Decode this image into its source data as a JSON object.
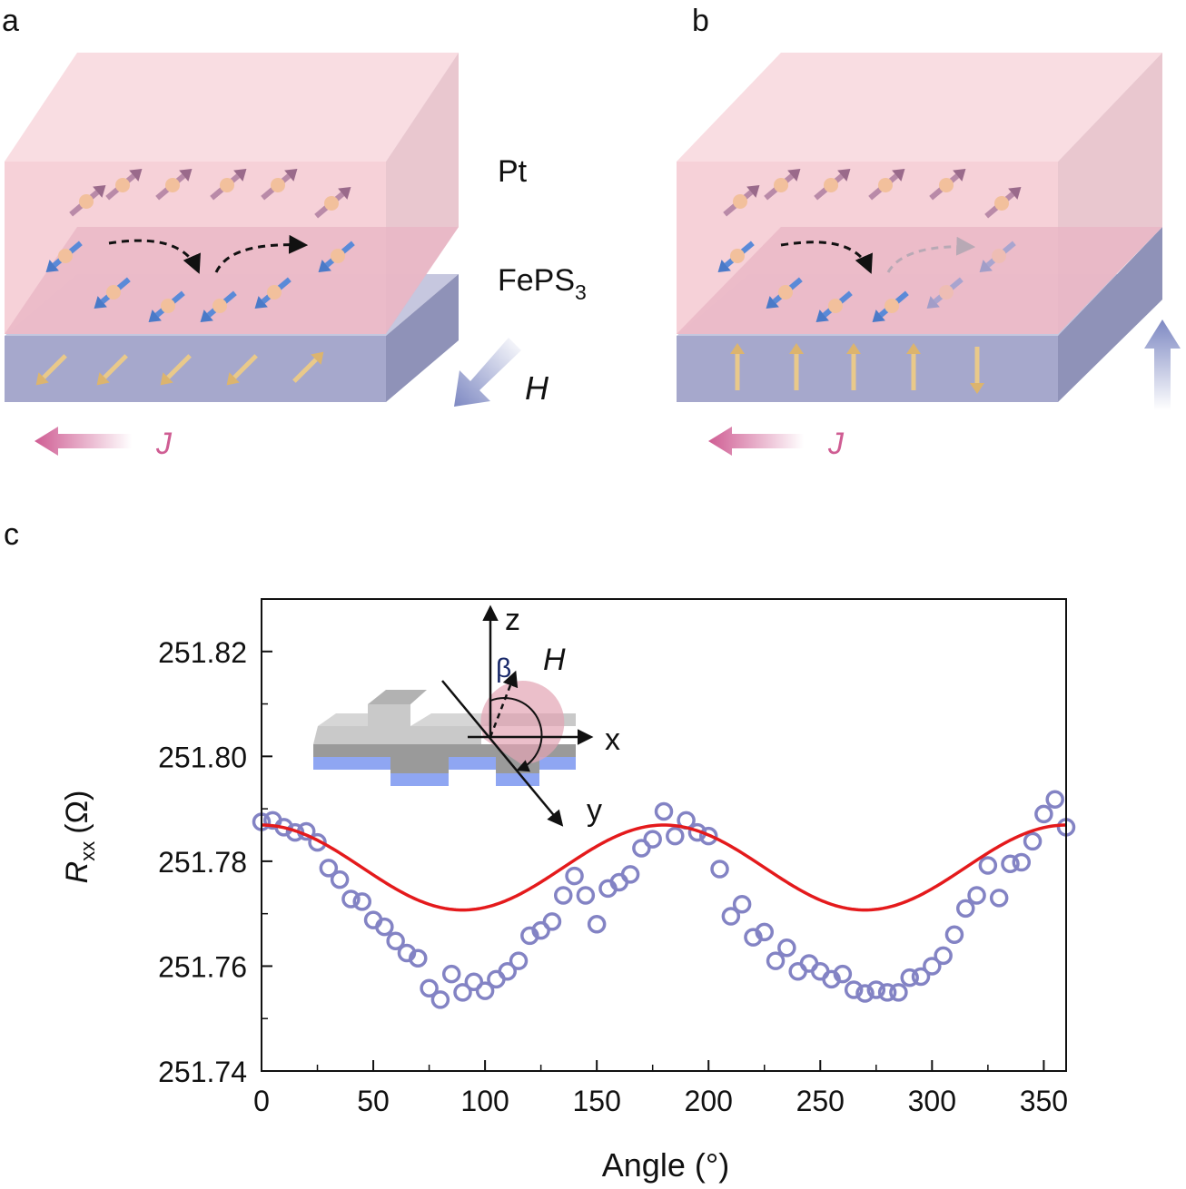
{
  "panels": {
    "a": {
      "letter": "a",
      "layer_top": "Pt",
      "layer_mid_base": "FePS",
      "layer_mid_sub": "3",
      "field_label": "H",
      "current_label": "J"
    },
    "b": {
      "letter": "b",
      "current_label": "J"
    },
    "c": {
      "letter": "c"
    }
  },
  "inset": {
    "axis_z": "z",
    "axis_x": "x",
    "axis_y": "y",
    "angle_label": "β",
    "field_label": "H"
  },
  "colors": {
    "pt_layer": "#f6cfd6",
    "magnet_layer": "#a6a8cc",
    "overlap": "#e8b4c4",
    "spin_pink": "#b98aa8",
    "spin_blue": "#5a8ad8",
    "spin_ball": "#f2c09c",
    "moment_gold": "#e9c98a",
    "current_arrow": "#cf5d93",
    "field_arrow": "#7d88c2",
    "fit_line": "#e41a1c",
    "data_marker": "#8383c4"
  },
  "chart_data": {
    "type": "scatter",
    "xlabel": "Angle (°)",
    "ylabel_main": "R",
    "ylabel_sub": "xx",
    "ylabel_unit": "(Ω)",
    "xlim": [
      0,
      360
    ],
    "ylim": [
      251.74,
      251.83
    ],
    "xticks": [
      0,
      50,
      100,
      150,
      200,
      250,
      300,
      350
    ],
    "yticks": [
      251.74,
      251.76,
      251.78,
      251.8,
      251.82
    ],
    "ytick_labels": [
      "251.74",
      "251.76",
      "251.78",
      "251.80",
      "251.82"
    ],
    "series": [
      {
        "kind": "markers",
        "marker": "open-circle",
        "x": [
          0,
          5,
          10,
          15,
          20,
          25,
          30,
          35,
          40,
          45,
          50,
          55,
          60,
          65,
          70,
          75,
          80,
          85,
          90,
          95,
          100,
          105,
          110,
          115,
          120,
          125,
          130,
          135,
          140,
          145,
          150,
          155,
          160,
          165,
          170,
          175,
          180,
          185,
          190,
          195,
          200,
          205,
          210,
          215,
          220,
          225,
          230,
          235,
          240,
          245,
          250,
          255,
          260,
          265,
          270,
          275,
          280,
          285,
          290,
          295,
          300,
          305,
          310,
          315,
          320,
          325,
          330,
          335,
          340,
          345,
          350,
          355,
          360
        ],
        "y": [
          251.7875,
          251.7878,
          251.7865,
          251.7855,
          251.7857,
          251.7836,
          251.7787,
          251.7765,
          251.7728,
          251.7723,
          251.7688,
          251.7675,
          251.7648,
          251.7625,
          251.7615,
          251.7558,
          251.7536,
          251.7585,
          251.755,
          251.757,
          251.7553,
          251.7575,
          251.759,
          251.761,
          251.7658,
          251.7668,
          251.7685,
          251.7735,
          251.7772,
          251.7735,
          251.768,
          251.7748,
          251.776,
          251.7775,
          251.7825,
          251.7842,
          251.7895,
          251.7848,
          251.7878,
          251.7855,
          251.7848,
          251.7785,
          251.7695,
          251.7718,
          251.7655,
          251.7665,
          251.761,
          251.7635,
          251.759,
          251.7605,
          251.759,
          251.7575,
          251.7585,
          251.7555,
          251.7548,
          251.7555,
          251.755,
          251.755,
          251.7578,
          251.758,
          251.76,
          251.762,
          251.766,
          251.771,
          251.7735,
          251.7792,
          251.773,
          251.7795,
          251.7798,
          251.7838,
          251.789,
          251.7918,
          251.7865
        ]
      },
      {
        "kind": "fit-line",
        "model": "cos2",
        "y0": 251.7707,
        "amplitude": 0.0162
      }
    ]
  }
}
